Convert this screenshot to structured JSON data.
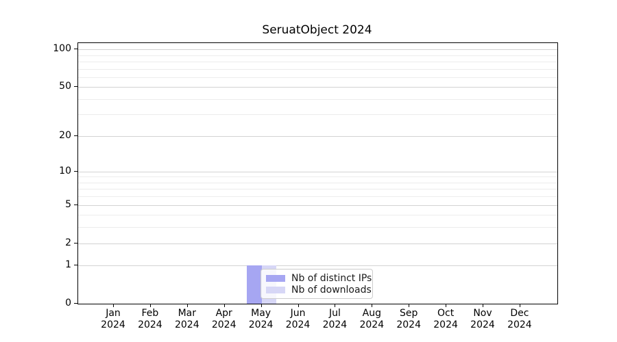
{
  "title": "SeruatObject 2024",
  "chart_data": {
    "type": "bar",
    "title": "SeruatObject 2024",
    "y_scale": "log1p",
    "ylim": [
      0,
      112
    ],
    "grid": "horizontal",
    "legend_position": "lower-center-inside",
    "months": [
      "Jan",
      "Feb",
      "Mar",
      "Apr",
      "May",
      "Jun",
      "Jul",
      "Aug",
      "Sep",
      "Oct",
      "Nov",
      "Dec"
    ],
    "year": "2024",
    "y_major_ticks": [
      0,
      1,
      2,
      5,
      10,
      20,
      50,
      100
    ],
    "y_minor_gridlines": [
      3,
      4,
      6,
      7,
      8,
      9,
      30,
      40,
      60,
      70,
      80,
      90
    ],
    "series": [
      {
        "name": "Nb of distinct IPs",
        "color": "#a6a6f2",
        "values": [
          0,
          0,
          0,
          0,
          1,
          0,
          0,
          0,
          0,
          0,
          0,
          0
        ]
      },
      {
        "name": "Nb of downloads",
        "color": "#d7d7f6",
        "values": [
          0,
          0,
          0,
          0,
          1,
          0,
          0,
          0,
          0,
          0,
          0,
          0
        ]
      }
    ],
    "colors": {
      "major_grid": "#d2d2d2",
      "minor_grid": "#ececec",
      "axis": "#000000"
    }
  }
}
